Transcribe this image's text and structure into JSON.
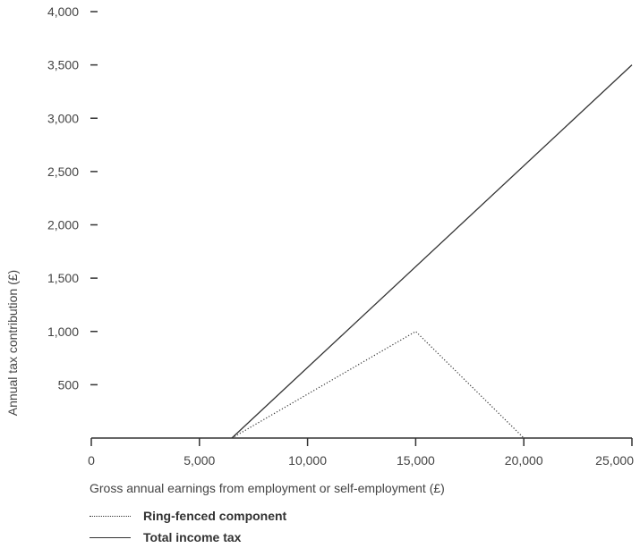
{
  "chart_data": {
    "type": "line",
    "title": "",
    "xlabel": "Gross annual earnings from employment or self-employment (£)",
    "ylabel": "Annual tax contribution (£)",
    "xlim": [
      0,
      25000
    ],
    "ylim": [
      0,
      4000
    ],
    "x_ticks": [
      {
        "value": 0,
        "label": "0"
      },
      {
        "value": 5000,
        "label": "5,000"
      },
      {
        "value": 10000,
        "label": "10,000"
      },
      {
        "value": 15000,
        "label": "15,000"
      },
      {
        "value": 20000,
        "label": "20,000"
      },
      {
        "value": 25000,
        "label": "25,000"
      }
    ],
    "y_ticks": [
      {
        "value": 500,
        "label": "500"
      },
      {
        "value": 1000,
        "label": "1,000"
      },
      {
        "value": 1500,
        "label": "1,500"
      },
      {
        "value": 2000,
        "label": "2,000"
      },
      {
        "value": 2500,
        "label": "2,500"
      },
      {
        "value": 3000,
        "label": "3,000"
      },
      {
        "value": 3500,
        "label": "3,500"
      },
      {
        "value": 4000,
        "label": "4,000"
      }
    ],
    "grid": false,
    "legend_position": "bottom-left",
    "series": [
      {
        "name": "Ring-fenced component",
        "style": "dotted",
        "color": "#333333",
        "points": [
          [
            6500,
            0
          ],
          [
            15000,
            1000
          ],
          [
            20000,
            0
          ]
        ]
      },
      {
        "name": "Total income tax",
        "style": "solid",
        "color": "#333333",
        "points": [
          [
            6500,
            0
          ],
          [
            25000,
            3500
          ]
        ]
      }
    ]
  }
}
